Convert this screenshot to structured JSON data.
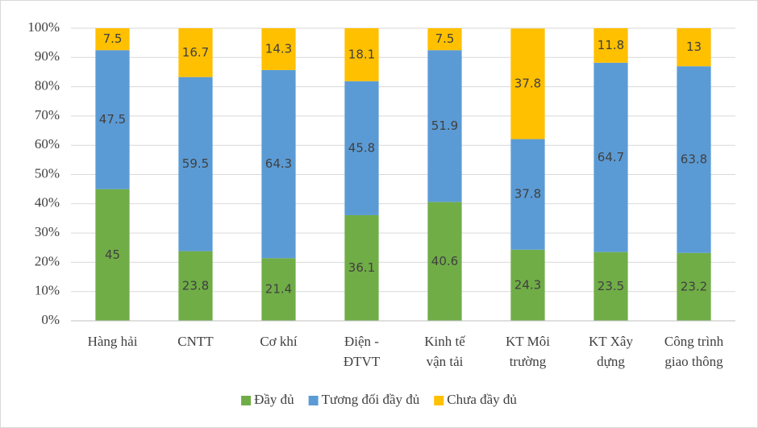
{
  "chart_data": {
    "type": "stacked_bar",
    "categories": [
      [
        "Hàng hải"
      ],
      [
        "CNTT"
      ],
      [
        "Cơ khí"
      ],
      [
        "Điện -",
        "ĐTVT"
      ],
      [
        "Kinh tế",
        "vận tải"
      ],
      [
        "KT Môi",
        "trường"
      ],
      [
        "KT Xây",
        "dựng"
      ],
      [
        "Công trình",
        "giao thông"
      ]
    ],
    "series": [
      {
        "name": "Đầy đủ",
        "color": "#70ad47",
        "values": [
          45,
          23.8,
          21.4,
          36.1,
          40.6,
          24.3,
          23.5,
          23.2
        ]
      },
      {
        "name": "Tương đối đầy đủ",
        "color": "#5b9bd5",
        "values": [
          47.5,
          59.5,
          64.3,
          45.8,
          51.9,
          37.8,
          64.7,
          63.8
        ]
      },
      {
        "name": "Chưa đầy đủ",
        "color": "#ffc000",
        "values": [
          7.5,
          16.7,
          14.3,
          18.1,
          7.5,
          37.8,
          11.8,
          13
        ]
      }
    ],
    "ylim": [
      0,
      100
    ],
    "yticks": [
      {
        "value": 0,
        "label": "0%"
      },
      {
        "value": 10,
        "label": "10%"
      },
      {
        "value": 20,
        "label": "20%"
      },
      {
        "value": 30,
        "label": "30%"
      },
      {
        "value": 40,
        "label": "40%"
      },
      {
        "value": 50,
        "label": "50%"
      },
      {
        "value": 60,
        "label": "60%"
      },
      {
        "value": 70,
        "label": "70%"
      },
      {
        "value": 80,
        "label": "80%"
      },
      {
        "value": 90,
        "label": "90%"
      },
      {
        "value": 100,
        "label": "100%"
      }
    ],
    "grid": true,
    "legend": "bottom"
  }
}
